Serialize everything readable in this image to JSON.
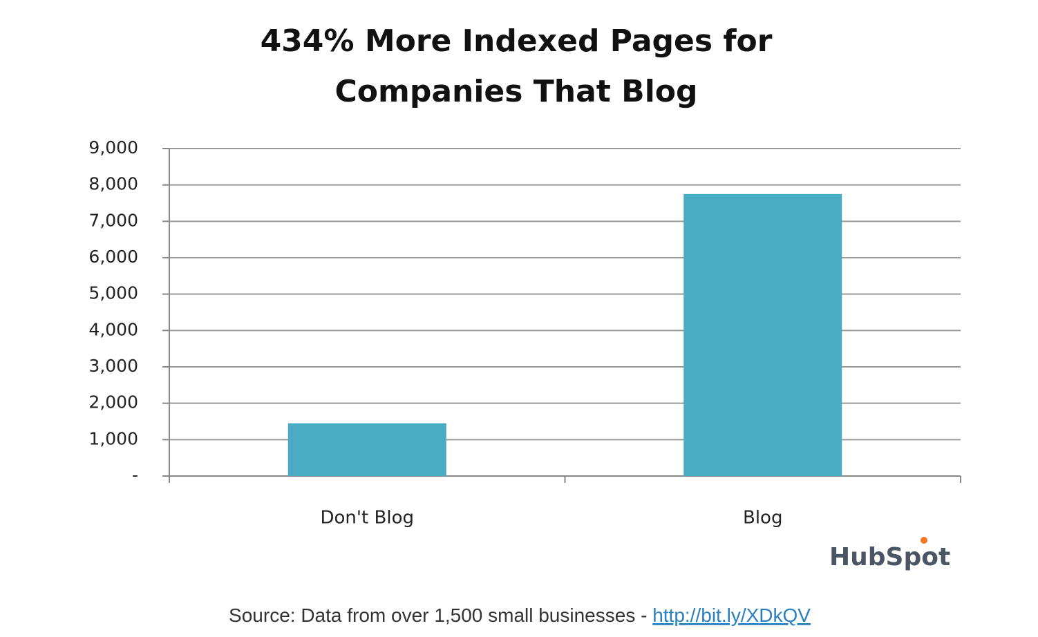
{
  "chart_data": {
    "type": "bar",
    "title": [
      "434% More Indexed Pages for",
      "Companies That Blog"
    ],
    "categories": [
      "Don't Blog",
      "Blog"
    ],
    "values": [
      1450,
      7750
    ],
    "color": "#4aabc5",
    "ylim": [
      0,
      9000
    ],
    "yticks": [
      {
        "value": 0,
        "label": "-"
      },
      {
        "value": 1000,
        "label": "1,000"
      },
      {
        "value": 2000,
        "label": "2,000"
      },
      {
        "value": 3000,
        "label": "3,000"
      },
      {
        "value": 4000,
        "label": "4,000"
      },
      {
        "value": 5000,
        "label": "5,000"
      },
      {
        "value": 6000,
        "label": "6,000"
      },
      {
        "value": 7000,
        "label": "7,000"
      },
      {
        "value": 8000,
        "label": "8,000"
      },
      {
        "value": 9000,
        "label": "9,000"
      }
    ],
    "grid": true,
    "logo": "HubSpot",
    "source": "Source: Data from over 1,500 small businesses - ",
    "source_link": "http://bit.ly/XDkQV"
  }
}
